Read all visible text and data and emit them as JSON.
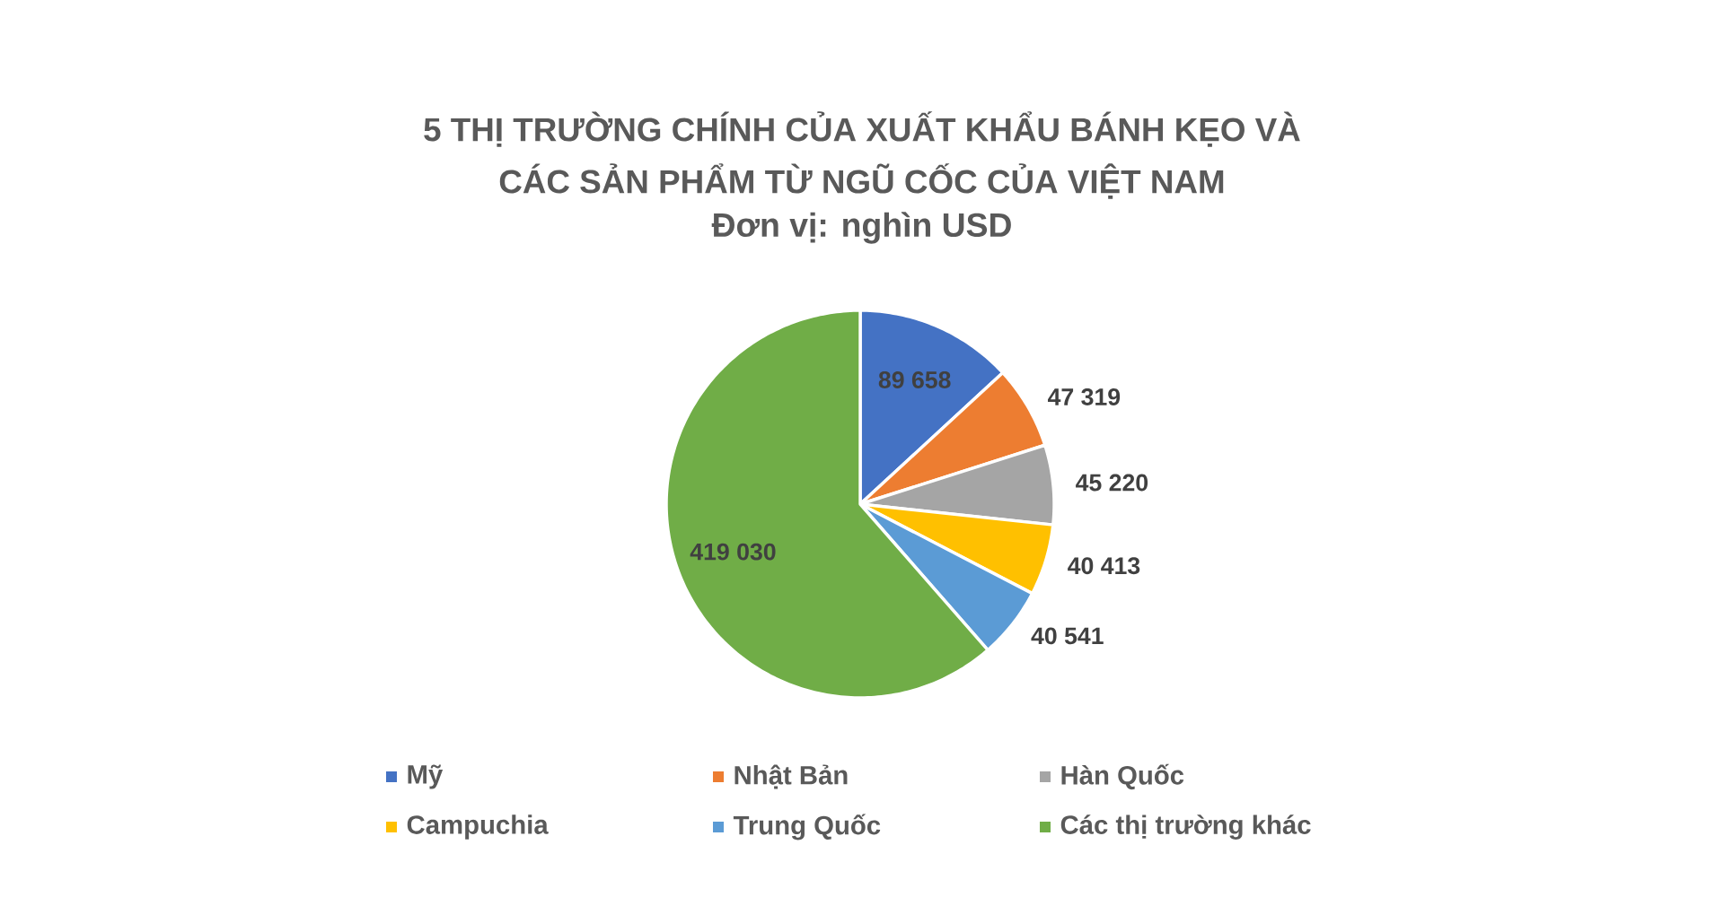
{
  "chart_data": {
    "type": "pie",
    "title": "5 THỊ TRƯỜNG CHÍNH CỦA XUẤT KHẨU BÁNH KẸO VÀ CÁC SẢN PHẨM TỪ NGŨ CỐC CỦA VIỆT NAM",
    "subtitle": "Đơn vị: nghìn USD",
    "categories": [
      "Mỹ",
      "Nhật Bản",
      "Hàn Quốc",
      "Campuchia",
      "Trung Quốc",
      "Các thị trường khác"
    ],
    "values": [
      89658,
      47319,
      45220,
      40413,
      40541,
      419030
    ],
    "colors": [
      "#4472c4",
      "#ed7d31",
      "#a5a5a5",
      "#ffc000",
      "#5b9bd5",
      "#70ad47"
    ],
    "value_labels": [
      "89 658",
      "47 319",
      "45 220",
      "40 413",
      "40 541",
      "419 030"
    ],
    "legend": "bottom"
  }
}
